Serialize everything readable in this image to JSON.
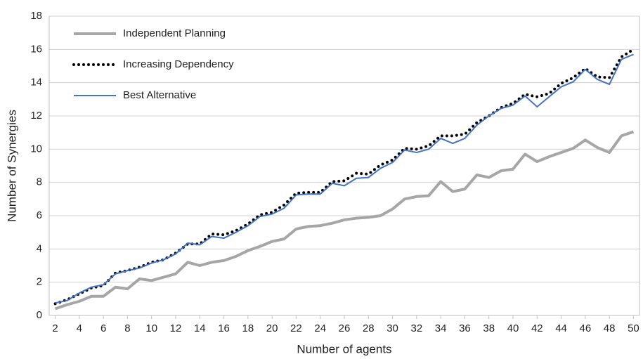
{
  "chart_data": {
    "type": "line",
    "xlabel": "Number of agents",
    "ylabel": "Number of Synergies",
    "x": [
      2,
      3,
      4,
      5,
      6,
      7,
      8,
      9,
      10,
      11,
      12,
      13,
      14,
      15,
      16,
      17,
      18,
      19,
      20,
      21,
      22,
      23,
      24,
      25,
      26,
      27,
      28,
      29,
      30,
      31,
      32,
      33,
      34,
      35,
      36,
      37,
      38,
      39,
      40,
      41,
      42,
      43,
      44,
      45,
      46,
      47,
      48,
      49,
      50
    ],
    "xlim": [
      1.5,
      50.5
    ],
    "xticks": [
      2,
      4,
      6,
      8,
      10,
      12,
      14,
      16,
      18,
      20,
      22,
      24,
      26,
      28,
      30,
      32,
      34,
      36,
      38,
      40,
      42,
      44,
      46,
      48,
      50
    ],
    "ylim": [
      0,
      18
    ],
    "yticks": [
      0,
      2,
      4,
      6,
      8,
      10,
      12,
      14,
      16,
      18
    ],
    "grid": true,
    "legend": "upper left",
    "series": [
      {
        "name": "Independent Planning",
        "color": "#a6a6a6",
        "linestyle": "solid",
        "values": [
          0.4,
          0.65,
          0.85,
          1.15,
          1.15,
          1.7,
          1.6,
          2.2,
          2.1,
          2.3,
          2.5,
          3.2,
          3.0,
          3.2,
          3.3,
          3.55,
          3.9,
          4.15,
          4.45,
          4.6,
          5.2,
          5.35,
          5.4,
          5.55,
          5.75,
          5.85,
          5.9,
          6.0,
          6.4,
          7.0,
          7.15,
          7.2,
          8.05,
          7.45,
          7.6,
          8.45,
          8.3,
          8.7,
          8.8,
          9.7,
          9.25,
          9.55,
          9.8,
          10.05,
          10.55,
          10.1,
          9.8,
          10.8,
          11.05
        ]
      },
      {
        "name": "Increasing Dependency",
        "color": "#000000",
        "linestyle": "dotted",
        "values": [
          0.7,
          0.95,
          1.3,
          1.65,
          1.8,
          2.55,
          2.7,
          2.9,
          3.2,
          3.35,
          3.75,
          4.3,
          4.3,
          4.9,
          4.85,
          5.1,
          5.5,
          6.05,
          6.2,
          6.65,
          7.35,
          7.4,
          7.4,
          8.05,
          8.1,
          8.55,
          8.5,
          9.05,
          9.35,
          10.05,
          10.0,
          10.2,
          10.8,
          10.8,
          10.9,
          11.6,
          12.0,
          12.5,
          12.75,
          13.3,
          13.15,
          13.35,
          13.95,
          14.3,
          14.85,
          14.35,
          14.3,
          15.55,
          16.0
        ]
      },
      {
        "name": "Best Alternative",
        "color": "#4472c4",
        "linestyle": "solid",
        "values": [
          0.75,
          0.9,
          1.35,
          1.7,
          1.85,
          2.5,
          2.7,
          2.85,
          3.15,
          3.35,
          3.7,
          4.35,
          4.25,
          4.75,
          4.65,
          5.0,
          5.4,
          5.95,
          6.1,
          6.45,
          7.25,
          7.3,
          7.3,
          7.95,
          7.8,
          8.25,
          8.3,
          8.85,
          9.2,
          9.95,
          9.8,
          10.0,
          10.65,
          10.35,
          10.65,
          11.45,
          12.0,
          12.45,
          12.65,
          13.2,
          12.55,
          13.15,
          13.75,
          14.05,
          14.8,
          14.2,
          13.9,
          15.4,
          15.7
        ]
      }
    ]
  }
}
